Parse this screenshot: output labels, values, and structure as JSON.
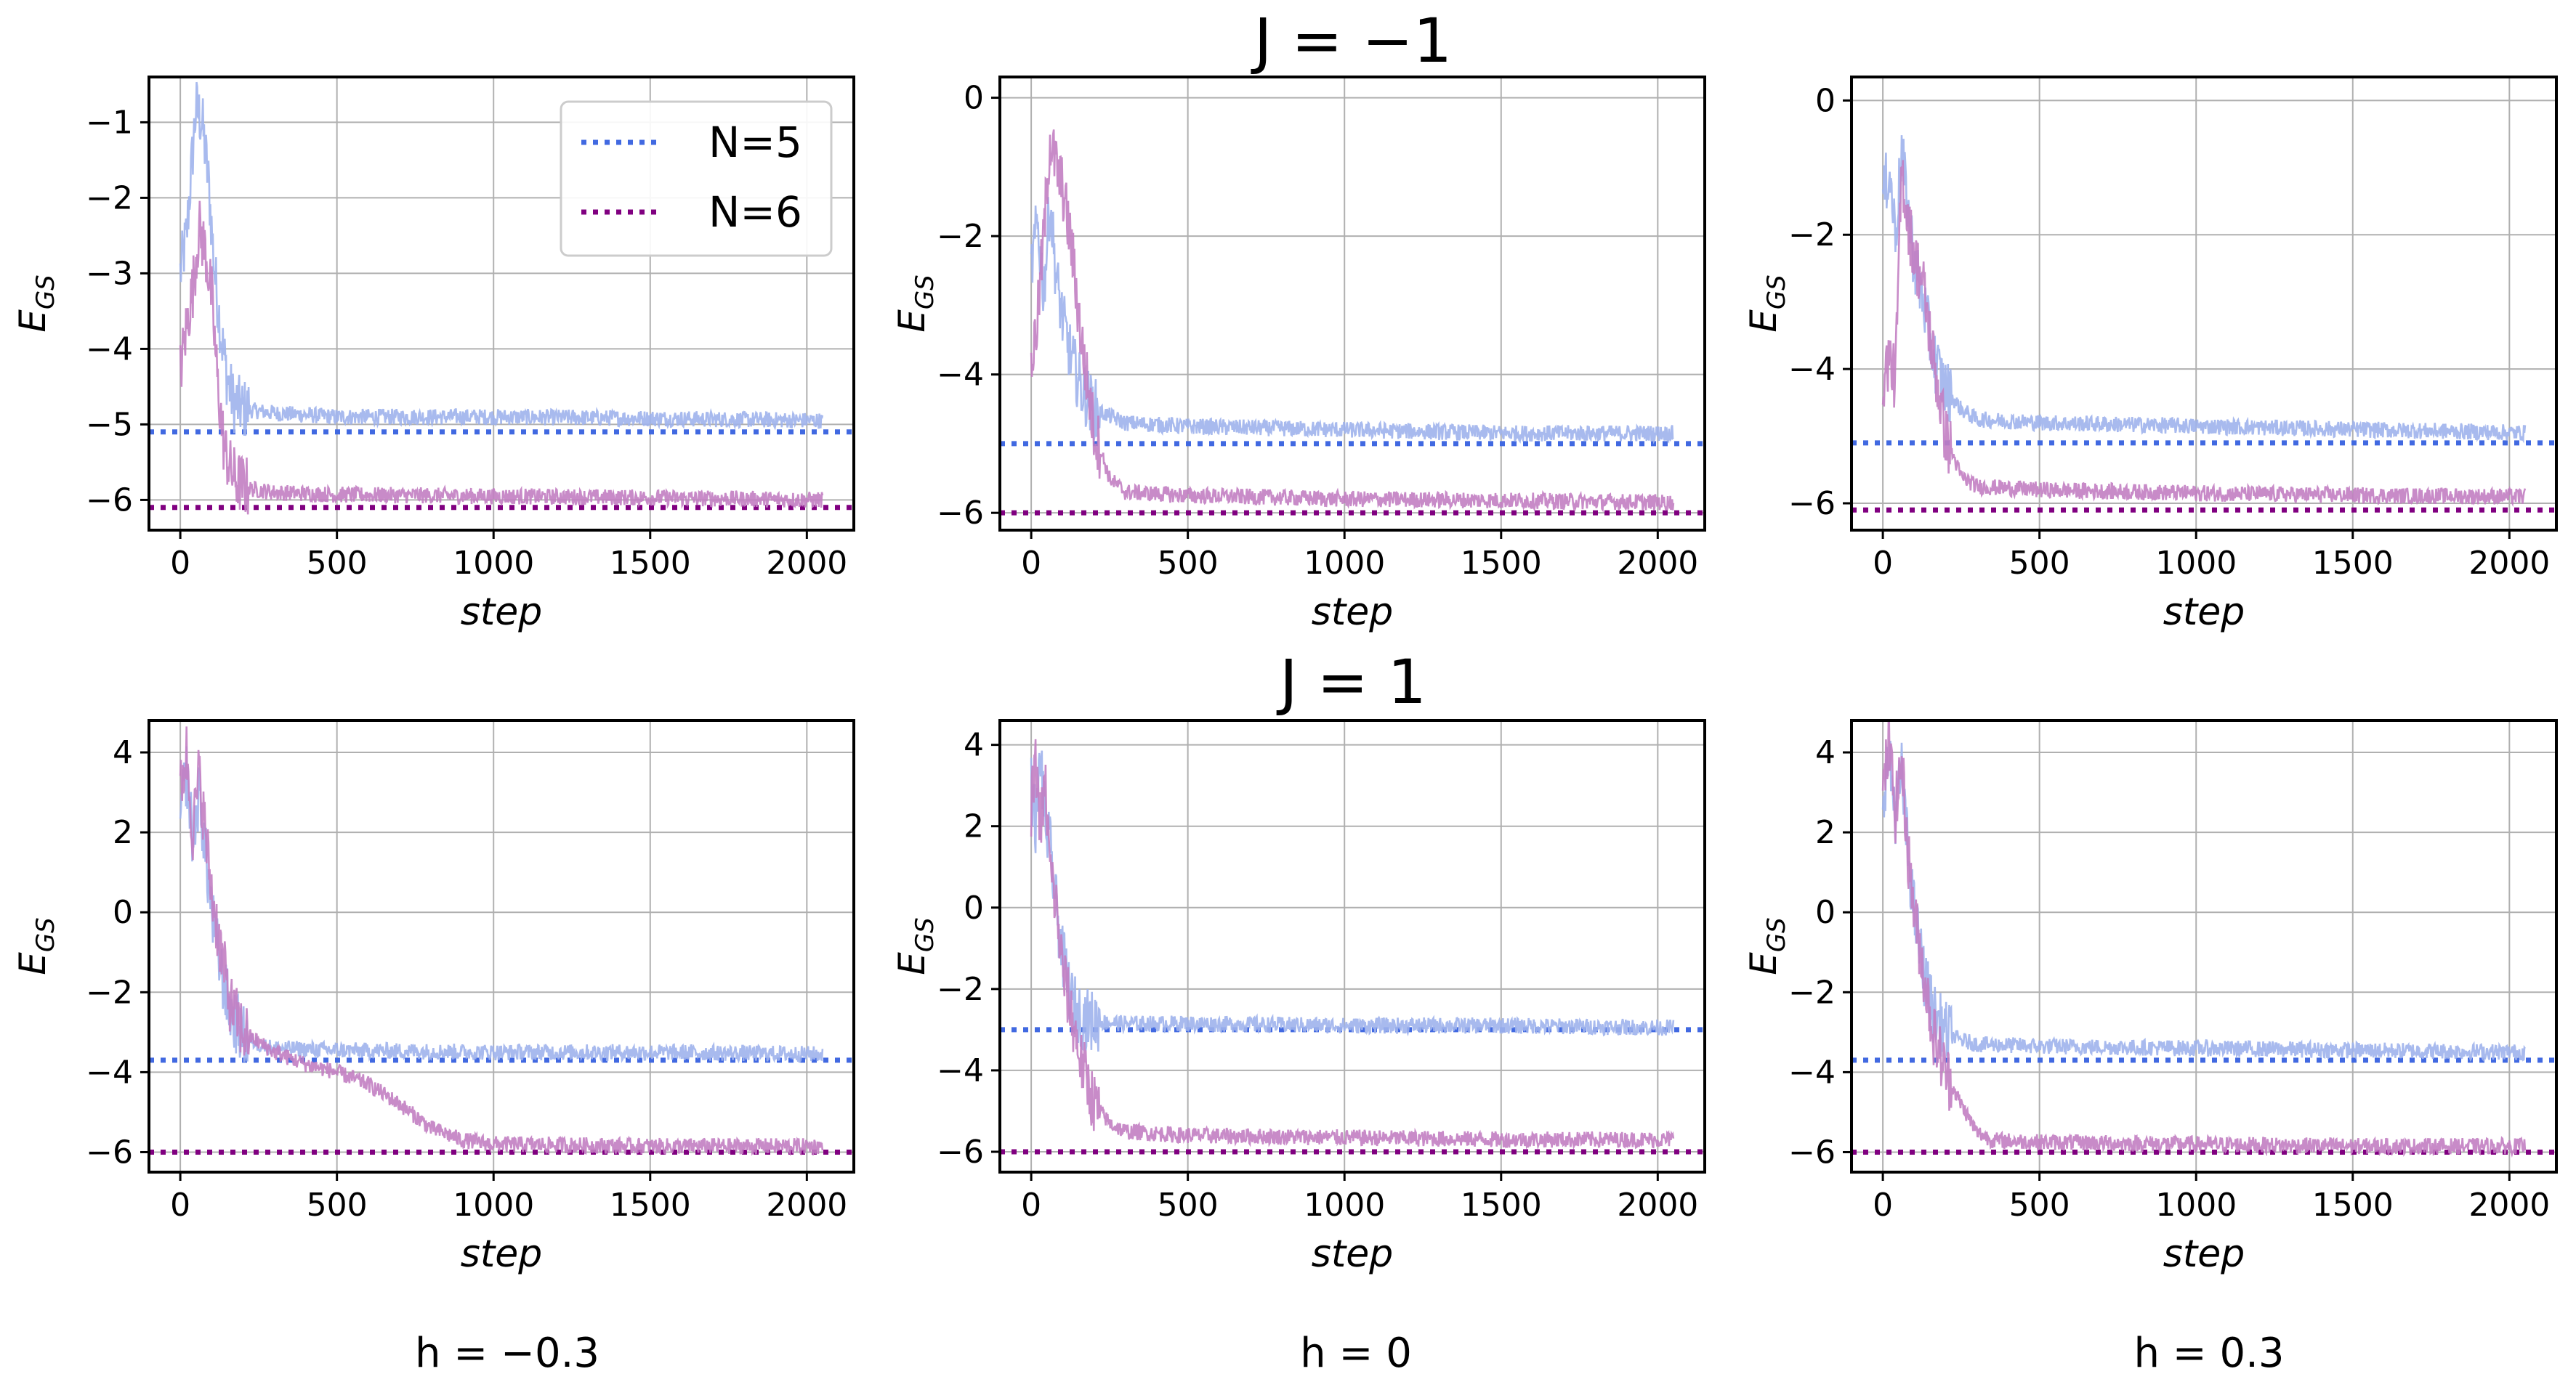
{
  "row_titles": [
    "J = −1",
    "J = 1"
  ],
  "column_labels": [
    "h = −0.3",
    "h = 0",
    "h = 0.3"
  ],
  "legend": [
    {
      "label": "N=5",
      "color": "#4169e1"
    },
    {
      "label": "N=6",
      "color": "#800080"
    }
  ],
  "colors": {
    "n5_dotted": "#4169e1",
    "n6_dotted": "#800080",
    "n5_curve": "#9fb3ec",
    "n6_curve": "#c27ec2"
  },
  "chart_data": [
    {
      "type": "line",
      "row": "J = −1",
      "column": "h = −0.3",
      "xlabel": "step",
      "ylabel": "E_GS",
      "xlim": [
        -100,
        2150
      ],
      "ylim": [
        -6.4,
        -0.4
      ],
      "xticks": [
        0,
        500,
        1000,
        1500,
        2000
      ],
      "xtick_labels": [
        "0",
        "500",
        "1000",
        "1500",
        "2000"
      ],
      "yticks": [
        -1,
        -2,
        -3,
        -4,
        -5,
        -6
      ],
      "ytick_labels": [
        "−1",
        "−2",
        "−3",
        "−4",
        "−5",
        "−6"
      ],
      "reference_lines": [
        {
          "name": "N=5",
          "y": -5.1
        },
        {
          "name": "N=6",
          "y": -6.1
        }
      ],
      "series": [
        {
          "name": "N=5",
          "x": [
            0,
            20,
            50,
            70,
            90,
            110,
            130,
            150,
            170,
            200,
            300,
            500,
            1000,
            1500,
            2050
          ],
          "values": [
            -3.0,
            -2.5,
            -0.8,
            -1.0,
            -1.8,
            -3.0,
            -3.8,
            -4.4,
            -4.7,
            -4.8,
            -4.85,
            -4.9,
            -4.9,
            -4.92,
            -4.95
          ]
        },
        {
          "name": "N=6",
          "x": [
            0,
            20,
            40,
            60,
            80,
            100,
            120,
            140,
            160,
            180,
            220,
            300,
            500,
            1000,
            1500,
            2050
          ],
          "values": [
            -4.3,
            -3.7,
            -3.2,
            -2.4,
            -2.7,
            -3.3,
            -4.5,
            -5.3,
            -5.6,
            -5.75,
            -5.85,
            -5.9,
            -5.93,
            -5.95,
            -5.97,
            -6.0
          ]
        }
      ]
    },
    {
      "type": "line",
      "row": "J = −1",
      "column": "h = 0",
      "xlabel": "step",
      "ylabel": "E_GS",
      "xlim": [
        -100,
        2150
      ],
      "ylim": [
        -6.25,
        0.3
      ],
      "xticks": [
        0,
        500,
        1000,
        1500,
        2000
      ],
      "xtick_labels": [
        "0",
        "500",
        "1000",
        "1500",
        "2000"
      ],
      "yticks": [
        0,
        -2,
        -4,
        -6
      ],
      "ytick_labels": [
        "0",
        "−2",
        "−4",
        "−6"
      ],
      "reference_lines": [
        {
          "name": "N=5",
          "y": -5.0
        },
        {
          "name": "N=6",
          "y": -6.0
        }
      ],
      "series": [
        {
          "name": "N=5",
          "x": [
            0,
            20,
            40,
            60,
            80,
            100,
            130,
            160,
            200,
            300,
            500,
            1000,
            1500,
            2050
          ],
          "values": [
            -2.5,
            -1.8,
            -2.8,
            -1.5,
            -2.6,
            -3.2,
            -3.8,
            -4.2,
            -4.5,
            -4.7,
            -4.75,
            -4.8,
            -4.85,
            -4.85
          ]
        },
        {
          "name": "N=6",
          "x": [
            0,
            20,
            40,
            60,
            80,
            100,
            130,
            160,
            200,
            250,
            300,
            500,
            1000,
            1500,
            2050
          ],
          "values": [
            -3.9,
            -3.2,
            -2.0,
            -0.6,
            -1.0,
            -1.3,
            -2.2,
            -3.5,
            -4.8,
            -5.5,
            -5.7,
            -5.75,
            -5.8,
            -5.82,
            -5.85
          ]
        }
      ]
    },
    {
      "type": "line",
      "row": "J = −1",
      "column": "h = 0.3",
      "xlabel": "step",
      "ylabel": "E_GS",
      "xlim": [
        -100,
        2150
      ],
      "ylim": [
        -6.4,
        0.35
      ],
      "xticks": [
        0,
        500,
        1000,
        1500,
        2000
      ],
      "xtick_labels": [
        "0",
        "500",
        "1000",
        "1500",
        "2000"
      ],
      "yticks": [
        0,
        -2,
        -4,
        -6
      ],
      "ytick_labels": [
        "0",
        "−2",
        "−4",
        "−6"
      ],
      "reference_lines": [
        {
          "name": "N=5",
          "y": -5.1
        },
        {
          "name": "N=6",
          "y": -6.1
        }
      ],
      "series": [
        {
          "name": "N=5",
          "x": [
            0,
            20,
            40,
            60,
            80,
            100,
            130,
            160,
            200,
            250,
            300,
            500,
            1000,
            1500,
            2050
          ],
          "values": [
            -1.5,
            -1.0,
            -2.0,
            -0.8,
            -1.6,
            -2.4,
            -3.0,
            -3.8,
            -4.3,
            -4.6,
            -4.75,
            -4.8,
            -4.85,
            -4.9,
            -4.95
          ]
        },
        {
          "name": "N=6",
          "x": [
            0,
            20,
            40,
            60,
            80,
            100,
            130,
            160,
            200,
            250,
            300,
            500,
            1000,
            1500,
            2050
          ],
          "values": [
            -4.2,
            -3.8,
            -4.2,
            -1.0,
            -1.8,
            -2.3,
            -2.8,
            -3.8,
            -5.0,
            -5.6,
            -5.75,
            -5.8,
            -5.85,
            -5.88,
            -5.9
          ]
        }
      ]
    },
    {
      "type": "line",
      "row": "J = 1",
      "column": "h = −0.3",
      "xlabel": "step",
      "ylabel": "E_GS",
      "xlim": [
        -100,
        2150
      ],
      "ylim": [
        -6.5,
        4.8
      ],
      "xticks": [
        0,
        500,
        1000,
        1500,
        2000
      ],
      "xtick_labels": [
        "0",
        "500",
        "1000",
        "1500",
        "2000"
      ],
      "yticks": [
        4,
        2,
        0,
        -2,
        -4,
        -6
      ],
      "ytick_labels": [
        "4",
        "2",
        "0",
        "−2",
        "−4",
        "−6"
      ],
      "reference_lines": [
        {
          "name": "N=5",
          "y": -3.7
        },
        {
          "name": "N=6",
          "y": -6.0
        }
      ],
      "series": [
        {
          "name": "N=5",
          "x": [
            0,
            20,
            40,
            60,
            80,
            100,
            130,
            160,
            200,
            250,
            300,
            500,
            1000,
            1500,
            2050
          ],
          "values": [
            2.5,
            3.5,
            1.8,
            3.0,
            1.5,
            0.0,
            -1.5,
            -2.5,
            -3.1,
            -3.3,
            -3.4,
            -3.45,
            -3.5,
            -3.5,
            -3.55
          ]
        },
        {
          "name": "N=6",
          "x": [
            0,
            20,
            40,
            60,
            80,
            100,
            130,
            160,
            200,
            300,
            400,
            500,
            600,
            700,
            800,
            900,
            1000,
            1500,
            2050
          ],
          "values": [
            3.0,
            4.0,
            2.0,
            3.5,
            2.0,
            0.5,
            -1.0,
            -2.3,
            -3.0,
            -3.5,
            -3.8,
            -4.0,
            -4.3,
            -4.8,
            -5.4,
            -5.7,
            -5.8,
            -5.85,
            -5.85
          ]
        }
      ]
    },
    {
      "type": "line",
      "row": "J = 1",
      "column": "h = 0",
      "xlabel": "step",
      "ylabel": "E_GS",
      "xlim": [
        -100,
        2150
      ],
      "ylim": [
        -6.5,
        4.6
      ],
      "xticks": [
        0,
        500,
        1000,
        1500,
        2000
      ],
      "xtick_labels": [
        "0",
        "500",
        "1000",
        "1500",
        "2000"
      ],
      "yticks": [
        4,
        2,
        0,
        -2,
        -4,
        -6
      ],
      "ytick_labels": [
        "4",
        "2",
        "0",
        "−2",
        "−4",
        "−6"
      ],
      "reference_lines": [
        {
          "name": "N=5",
          "y": -3.0
        },
        {
          "name": "N=6",
          "y": -6.0
        }
      ],
      "series": [
        {
          "name": "N=5",
          "x": [
            0,
            15,
            30,
            45,
            60,
            80,
            100,
            130,
            160,
            200,
            300,
            500,
            1000,
            1500,
            2050
          ],
          "values": [
            3.0,
            2.0,
            3.8,
            2.0,
            1.5,
            0.0,
            -1.2,
            -2.3,
            -2.7,
            -2.8,
            -2.85,
            -2.85,
            -2.9,
            -2.9,
            -2.95
          ]
        },
        {
          "name": "N=6",
          "x": [
            0,
            15,
            30,
            45,
            60,
            80,
            100,
            130,
            160,
            200,
            250,
            300,
            500,
            1000,
            1500,
            2050
          ],
          "values": [
            2.5,
            3.5,
            2.0,
            3.0,
            1.0,
            0.0,
            -1.5,
            -2.7,
            -3.8,
            -4.8,
            -5.3,
            -5.5,
            -5.6,
            -5.65,
            -5.7,
            -5.7
          ]
        }
      ]
    },
    {
      "type": "line",
      "row": "J = 1",
      "column": "h = 0.3",
      "xlabel": "step",
      "ylabel": "E_GS",
      "xlim": [
        -100,
        2150
      ],
      "ylim": [
        -6.5,
        4.8
      ],
      "xticks": [
        0,
        500,
        1000,
        1500,
        2000
      ],
      "xtick_labels": [
        "0",
        "500",
        "1000",
        "1500",
        "2000"
      ],
      "yticks": [
        4,
        2,
        0,
        -2,
        -4,
        -6
      ],
      "ytick_labels": [
        "4",
        "2",
        "0",
        "−2",
        "−4",
        "−6"
      ],
      "reference_lines": [
        {
          "name": "N=5",
          "y": -3.7
        },
        {
          "name": "N=6",
          "y": -6.0
        }
      ],
      "series": [
        {
          "name": "N=5",
          "x": [
            0,
            20,
            40,
            60,
            80,
            100,
            130,
            160,
            200,
            250,
            300,
            500,
            1000,
            1500,
            2050
          ],
          "values": [
            3.0,
            3.8,
            2.5,
            3.5,
            1.5,
            0.0,
            -1.5,
            -2.5,
            -3.0,
            -3.2,
            -3.3,
            -3.35,
            -3.4,
            -3.45,
            -3.5
          ]
        },
        {
          "name": "N=6",
          "x": [
            0,
            20,
            40,
            60,
            80,
            100,
            130,
            160,
            200,
            250,
            300,
            350,
            500,
            1000,
            1500,
            2050
          ],
          "values": [
            3.0,
            4.2,
            2.5,
            3.8,
            1.5,
            0.0,
            -1.5,
            -3.0,
            -4.0,
            -4.8,
            -5.5,
            -5.7,
            -5.75,
            -5.8,
            -5.85,
            -5.85
          ]
        }
      ]
    }
  ]
}
